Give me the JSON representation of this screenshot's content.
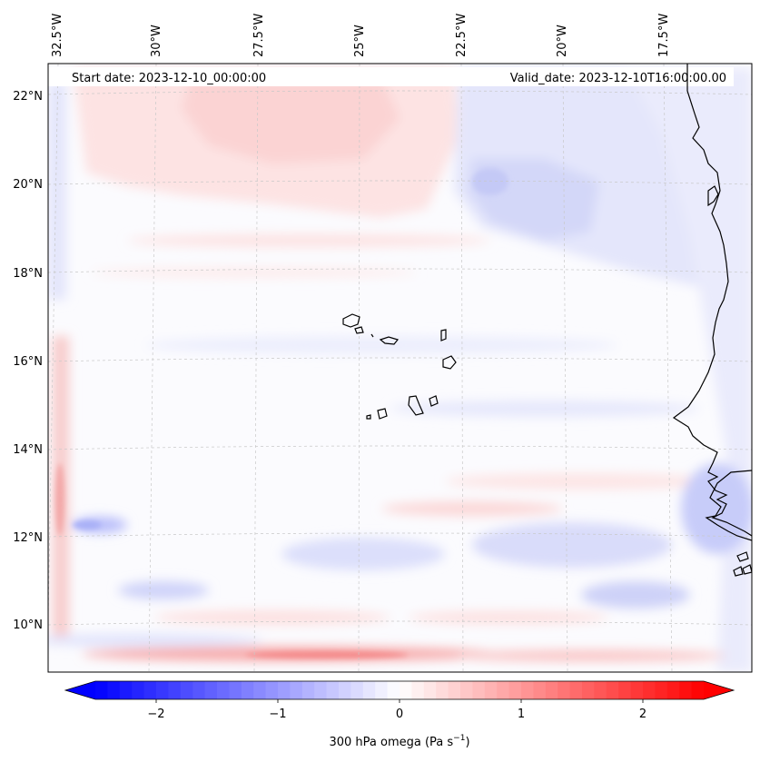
{
  "header": {
    "start_label": "Start date: 2023-12-10_00:00:00",
    "valid_label": "Valid_date: 2023-12-10T16:00:00.00"
  },
  "map": {
    "variable": "300 hPa omega",
    "lon_labels": [
      "32.5°W",
      "30°W",
      "27.5°W",
      "25°W",
      "22.5°W",
      "20°W",
      "17.5°W"
    ],
    "lat_labels": [
      "22°N",
      "20°N",
      "18°N",
      "16°N",
      "14°N",
      "12°N",
      "10°N"
    ],
    "lon_extent_deg": [
      -33.0,
      -16.0
    ],
    "lat_extent_deg": [
      8.9,
      22.7
    ]
  },
  "colorbar": {
    "ticks": [
      "−2",
      "−1",
      "0",
      "1",
      "2"
    ],
    "tick_values": [
      -2,
      -1,
      0,
      1,
      2
    ],
    "range": [
      -2.5,
      2.5
    ],
    "label_main": "300 hPa omega (Pa s",
    "label_exp": "−1",
    "label_close": ")",
    "neg_color": "#0000ff",
    "mid_color": "#ffffff",
    "pos_color": "#ff0000"
  },
  "colors": {
    "ocean_bg": "#fbfbfe",
    "coastline": "#000000",
    "gridline": "#c8c8c8"
  }
}
